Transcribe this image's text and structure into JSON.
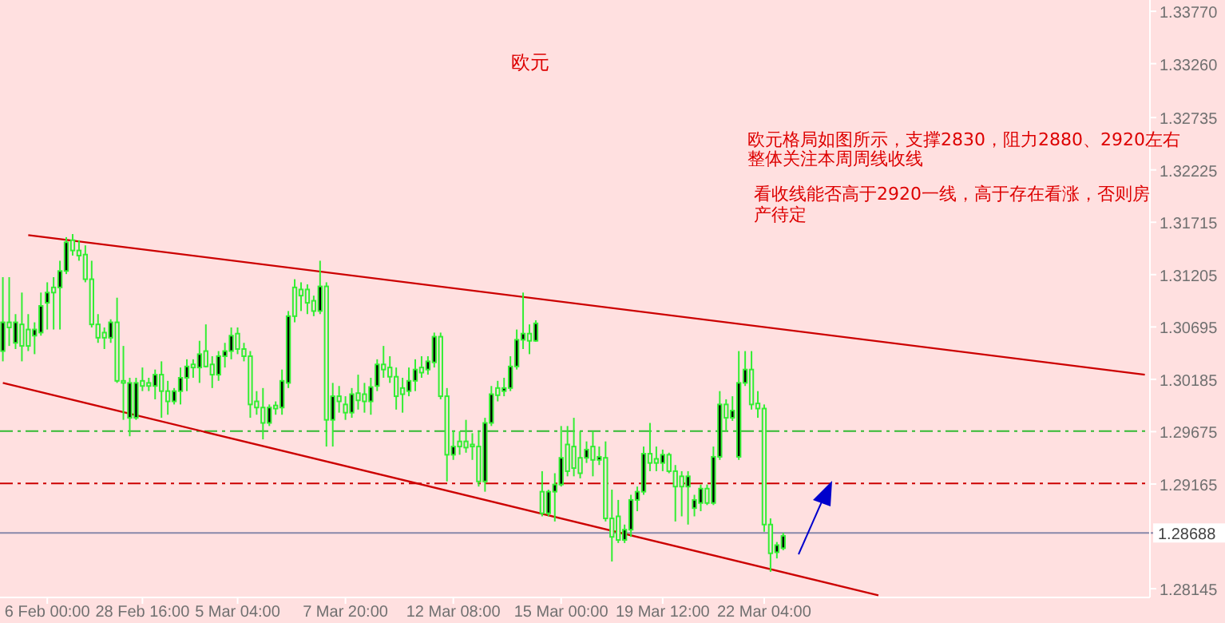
{
  "chart_data": {
    "type": "candlestick",
    "title": "欧元",
    "annotations": [
      "欧元格局如图所示，支撑2830，阻力2880、2920左右",
      "整体关注本周周线收线",
      "看收线能否高于2920一线，高于存在看涨，否则房产待定"
    ],
    "categories": [
      null,
      null,
      null,
      null,
      null,
      null,
      null,
      "6 Feb 00:00",
      null,
      null,
      null,
      null,
      null,
      null,
      null,
      null,
      null,
      null,
      null,
      null,
      null,
      null,
      "28 Feb 16:00",
      null,
      null,
      null,
      null,
      null,
      null,
      null,
      null,
      null,
      null,
      null,
      null,
      null,
      null,
      "5 Mar 04:00",
      null,
      null,
      null,
      null,
      null,
      null,
      null,
      null,
      null,
      null,
      null,
      null,
      null,
      null,
      null,
      null,
      "7 Mar 20:00",
      null,
      null,
      null,
      null,
      null,
      null,
      null,
      null,
      null,
      null,
      null,
      null,
      null,
      null,
      null,
      null,
      "12 Mar 08:00",
      null,
      null,
      null,
      null,
      null,
      null,
      null,
      null,
      null,
      null,
      null,
      null,
      null,
      null,
      null,
      null,
      "15 Mar 00:00",
      null,
      null,
      null,
      null,
      null,
      null,
      null,
      null,
      null,
      null,
      null,
      null,
      null,
      null,
      null,
      "19 Mar 12:00",
      null,
      null,
      null,
      null,
      null,
      null,
      null,
      null,
      null,
      null,
      null,
      null,
      null,
      null,
      null,
      "22 Mar 04:00",
      null,
      null,
      null,
      null,
      null,
      null,
      null,
      null,
      null,
      null,
      null,
      null,
      null,
      null,
      null,
      null,
      null,
      null,
      null,
      null,
      null,
      null,
      null,
      null,
      null,
      null,
      null,
      null,
      null,
      null,
      null,
      null,
      null,
      null,
      null,
      null,
      null,
      null,
      null,
      null,
      null,
      null,
      null,
      null,
      null,
      null,
      null,
      null,
      null,
      null,
      null,
      null,
      null,
      null,
      null,
      null,
      null,
      null,
      null,
      null
    ],
    "color": "#33ee33",
    "colors": [
      "#000000",
      "#ffe0e0",
      "#000000",
      "#ffe0e0",
      "#ffe0e0",
      "#000000",
      "#000000",
      "#000000",
      "#ffe0e0",
      "#000000",
      "#000000",
      "#ffe0e0",
      "#ffe0e0",
      "#ffe0e0",
      "#ffe0e0",
      "#ffe0e0",
      "#ffe0e0",
      "#000000",
      "#ffe0e0",
      "#ffe0e0",
      "#000000",
      "#000000",
      "#ffe0e0",
      "#ffe0e0",
      "#000000",
      "#ffe0e0",
      "#ffe0e0",
      "#000000",
      "#000000",
      "#000000",
      "#ffe0e0",
      "#000000",
      "#ffe0e0",
      "#ffe0e0",
      "#000000",
      "#000000",
      "#000000",
      "#ffe0e0",
      "#ffe0e0",
      "#ffe0e0",
      "#ffe0e0",
      "#ffe0e0",
      "#000000",
      "#ffe0e0",
      "#000000",
      "#000000",
      "#ffe0e0",
      "#ffe0e0",
      "#ffe0e0",
      "#ffe0e0",
      "#000000",
      "#ffe0e0",
      "#000000",
      "#ffe0e0",
      "#ffe0e0",
      "#000000",
      "#ffe0e0",
      "#ffe0e0",
      "#000000",
      "#000000",
      "#ffe0e0",
      "#ffe0e0",
      "#ffe0e0",
      "#ffe0e0",
      "#000000",
      "#000000",
      "#ffe0e0",
      "#000000",
      "#000000",
      "#ffe0e0",
      "#ffe0e0",
      "#000000",
      "#ffe0e0",
      "#ffe0e0",
      "#ffe0e0",
      "#ffe0e0",
      "#000000",
      "#000000",
      "#ffe0e0",
      "#000000",
      "#000000",
      "#000000",
      "#000000",
      "#ffe0e0",
      "#000000",
      "#ffe0e0",
      "#000000",
      "#000000",
      "#000000",
      "#ffe0e0",
      "#ffe0e0",
      "#ffe0e0",
      "#000000",
      "#ffe0e0",
      "#000000",
      "#ffe0e0",
      "#ffe0e0",
      "#ffe0e0",
      "#000000",
      "#000000",
      "#000000",
      "#000000",
      "#ffe0e0",
      "#ffe0e0",
      "#000000",
      "#ffe0e0",
      "#ffe0e0",
      "#ffe0e0",
      "#000000",
      "#000000",
      "#000000",
      "#ffe0e0",
      "#000000",
      "#000000",
      "#ffe0e0",
      "#000000",
      "#000000",
      "#000000",
      "#ffe0e0",
      "#ffe0e0",
      "#ffe0e0",
      "#ffe0e0",
      "#000000",
      "#000000",
      null,
      null,
      null,
      null,
      null,
      null,
      null,
      null,
      null,
      null,
      null,
      null,
      null,
      null,
      null,
      null,
      null,
      null,
      null,
      null,
      null,
      null,
      null,
      null,
      null,
      null,
      null,
      null,
      null,
      null,
      null,
      null,
      null,
      null,
      null,
      null,
      null,
      null,
      null,
      null,
      null,
      null,
      null,
      null,
      null,
      null,
      null,
      null,
      null,
      null,
      null,
      null,
      null,
      null,
      null,
      null,
      null
    ],
    "ohlc": [
      [
        1.3046,
        1.3118,
        1.3036,
        1.3074
      ],
      [
        1.3074,
        1.3118,
        1.3051,
        1.3069
      ],
      [
        1.3054,
        1.3082,
        1.3048,
        1.3074
      ],
      [
        1.3072,
        1.3103,
        1.3036,
        1.3051
      ],
      [
        1.3067,
        1.3082,
        1.3046,
        1.3051
      ],
      [
        1.3061,
        1.3074,
        1.3043,
        1.3067
      ],
      [
        1.3064,
        1.3103,
        1.3061,
        1.309
      ],
      [
        1.3093,
        1.3113,
        1.3067,
        1.3103
      ],
      [
        1.3108,
        1.3118,
        1.3067,
        1.3103
      ],
      [
        1.3108,
        1.3134,
        1.3067,
        1.3124
      ],
      [
        1.3124,
        1.3157,
        1.3121,
        1.3152
      ],
      [
        1.3154,
        1.316,
        1.3139,
        1.3144
      ],
      [
        1.3144,
        1.3154,
        1.3134,
        1.3139
      ],
      [
        1.314,
        1.3149,
        1.3113,
        1.3116
      ],
      [
        1.3116,
        1.3134,
        1.3069,
        1.3072
      ],
      [
        1.3072,
        1.3082,
        1.3054,
        1.3059
      ],
      [
        1.3064,
        1.3069,
        1.3048,
        1.3059
      ],
      [
        1.3059,
        1.3077,
        1.3054,
        1.3074
      ],
      [
        1.3074,
        1.3098,
        1.3015,
        1.3017
      ],
      [
        1.3017,
        1.3051,
        1.2979,
        1.3015
      ],
      [
        1.2981,
        1.302,
        1.2963,
        1.3015
      ],
      [
        1.2981,
        1.302,
        1.2979,
        1.3015
      ],
      [
        1.3017,
        1.303,
        1.3007,
        1.3012
      ],
      [
        1.3015,
        1.302,
        1.3007,
        1.3012
      ],
      [
        1.3012,
        1.3028,
        1.2999,
        1.3023
      ],
      [
        1.3023,
        1.3036,
        1.2981,
        1.3007
      ],
      [
        1.3007,
        1.3017,
        1.2984,
        1.2997
      ],
      [
        1.2997,
        1.301,
        1.2994,
        1.3007
      ],
      [
        1.3007,
        1.303,
        1.2994,
        1.302
      ],
      [
        1.302,
        1.3038,
        1.3007,
        1.3031
      ],
      [
        1.3033,
        1.3038,
        1.302,
        1.303
      ],
      [
        1.303,
        1.3056,
        1.3015,
        1.3043
      ],
      [
        1.3046,
        1.3072,
        1.303,
        1.3031
      ],
      [
        1.3033,
        1.3041,
        1.301,
        1.3023
      ],
      [
        1.3023,
        1.3046,
        1.3017,
        1.3041
      ],
      [
        1.3041,
        1.3054,
        1.303,
        1.3046
      ],
      [
        1.3046,
        1.3069,
        1.3038,
        1.3061
      ],
      [
        1.3063,
        1.3069,
        1.3043,
        1.3048
      ],
      [
        1.3048,
        1.3054,
        1.3036,
        1.3041
      ],
      [
        1.3041,
        1.3046,
        1.2981,
        1.2994
      ],
      [
        1.2997,
        1.3007,
        1.2984,
        1.2991
      ],
      [
        1.2991,
        1.301,
        1.296,
        1.2976
      ],
      [
        1.2976,
        1.2994,
        1.2973,
        1.2991
      ],
      [
        1.2993,
        1.2997,
        1.2984,
        1.299
      ],
      [
        1.2991,
        1.3028,
        1.2984,
        1.3017
      ],
      [
        1.3015,
        1.3085,
        1.301,
        1.308
      ],
      [
        1.3108,
        1.3116,
        1.3074,
        1.308
      ],
      [
        1.3106,
        1.3113,
        1.3085,
        1.31
      ],
      [
        1.3106,
        1.3111,
        1.3082,
        1.3093
      ],
      [
        1.3095,
        1.31,
        1.308,
        1.3085
      ],
      [
        1.3085,
        1.3134,
        1.3082,
        1.3109
      ],
      [
        1.3109,
        1.3113,
        1.2953,
        1.2979
      ],
      [
        1.2979,
        1.3015,
        1.2953,
        1.3002
      ],
      [
        1.3002,
        1.3012,
        1.2986,
        1.2997
      ],
      [
        1.2994,
        1.3002,
        1.2979,
        1.2986
      ],
      [
        1.2986,
        1.301,
        1.2981,
        1.3004
      ],
      [
        1.3005,
        1.3023,
        1.2989,
        1.2998
      ],
      [
        1.3004,
        1.3015,
        1.2986,
        1.2997
      ],
      [
        1.2997,
        1.302,
        1.2984,
        1.3011
      ],
      [
        1.3012,
        1.3038,
        1.3007,
        1.3033
      ],
      [
        1.3033,
        1.3051,
        1.302,
        1.3028
      ],
      [
        1.303,
        1.3041,
        1.3015,
        1.3021
      ],
      [
        1.3021,
        1.303,
        1.2989,
        1.3002
      ],
      [
        1.301,
        1.302,
        1.2986,
        1.3004
      ],
      [
        1.3007,
        1.303,
        1.3002,
        1.3017
      ],
      [
        1.3017,
        1.3038,
        1.3007,
        1.3028
      ],
      [
        1.303,
        1.3041,
        1.302,
        1.3025
      ],
      [
        1.3028,
        1.3041,
        1.3023,
        1.3036
      ],
      [
        1.3035,
        1.3064,
        1.303,
        1.306
      ],
      [
        1.306,
        1.3064,
        1.2999,
        1.3002
      ],
      [
        1.3002,
        1.301,
        1.2919,
        1.2945
      ],
      [
        1.2945,
        1.2968,
        1.294,
        1.2953
      ],
      [
        1.2958,
        1.2968,
        1.2945,
        1.2953
      ],
      [
        1.2958,
        1.2979,
        1.2947,
        1.2952
      ],
      [
        1.2955,
        1.2966,
        1.294,
        1.2953
      ],
      [
        1.2953,
        1.2968,
        1.2914,
        1.2919
      ],
      [
        1.2919,
        1.2981,
        1.2909,
        1.2976
      ],
      [
        1.2976,
        1.3012,
        1.2973,
        1.3004
      ],
      [
        1.301,
        1.3017,
        1.2997,
        1.3003
      ],
      [
        1.3007,
        1.302,
        1.3002,
        1.301
      ],
      [
        1.301,
        1.3041,
        1.3007,
        1.3031
      ],
      [
        1.3031,
        1.3067,
        1.3028,
        1.3057
      ],
      [
        1.3057,
        1.3103,
        1.3048,
        1.3063
      ],
      [
        1.3063,
        1.3072,
        1.3043,
        1.3056
      ],
      [
        1.3056,
        1.3076,
        1.3055,
        1.3073
      ],
      [
        1.2909,
        1.2929,
        1.2885,
        1.2888
      ],
      [
        1.2888,
        1.2911,
        1.2885,
        1.2909
      ],
      [
        1.2909,
        1.2927,
        1.288,
        1.2916
      ],
      [
        1.2916,
        1.2973,
        1.2914,
        1.2942
      ],
      [
        1.2955,
        1.2973,
        1.2924,
        1.2929
      ],
      [
        1.2953,
        1.2981,
        1.2924,
        1.2932
      ],
      [
        1.2942,
        1.2968,
        1.2922,
        1.2927
      ],
      [
        1.2942,
        1.2958,
        1.2937,
        1.295
      ],
      [
        1.2953,
        1.2968,
        1.2924,
        1.294
      ],
      [
        1.294,
        1.2953,
        1.2935,
        1.2943
      ],
      [
        1.2942,
        1.2958,
        1.288,
        1.2883
      ],
      [
        1.2883,
        1.2911,
        1.2841,
        1.2865
      ],
      [
        1.2885,
        1.2901,
        1.2859,
        1.2862
      ],
      [
        1.2862,
        1.2877,
        1.2859,
        1.2872
      ],
      [
        1.2872,
        1.2906,
        1.2865,
        1.2901
      ],
      [
        1.2901,
        1.2914,
        1.289,
        1.2909
      ],
      [
        1.2909,
        1.2953,
        1.2906,
        1.2946
      ],
      [
        1.2946,
        1.2976,
        1.2929,
        1.2937
      ],
      [
        1.2941,
        1.2953,
        1.2929,
        1.2937
      ],
      [
        1.2937,
        1.295,
        1.2929,
        1.2945
      ],
      [
        1.2945,
        1.2947,
        1.2927,
        1.2929
      ],
      [
        1.2929,
        1.2935,
        1.288,
        1.2914
      ],
      [
        1.2924,
        1.2929,
        1.2885,
        1.2914
      ],
      [
        1.2914,
        1.2929,
        1.2877,
        1.2924
      ],
      [
        1.2893,
        1.2906,
        1.2885,
        1.2901
      ],
      [
        1.2898,
        1.2916,
        1.289,
        1.2912
      ],
      [
        1.2912,
        1.2916,
        1.2896,
        1.2898
      ],
      [
        1.2898,
        1.2953,
        1.2896,
        1.2943
      ],
      [
        1.2943,
        1.3007,
        1.294,
        1.2994
      ],
      [
        1.2994,
        1.2999,
        1.2968,
        1.2981
      ],
      [
        1.2981,
        1.3002,
        1.2978,
        1.2988
      ],
      [
        1.2943,
        1.3046,
        1.294,
        1.3015
      ],
      [
        1.3015,
        1.3046,
        1.3012,
        1.3028
      ],
      [
        1.3028,
        1.3046,
        1.2989,
        1.2994
      ],
      [
        1.2995,
        1.3007,
        1.2981,
        1.299
      ],
      [
        1.299,
        1.2994,
        1.287,
        1.2877
      ],
      [
        1.2877,
        1.2883,
        1.2831,
        1.2849
      ],
      [
        1.285,
        1.286,
        1.2844,
        1.2857
      ],
      [
        1.2854,
        1.2869,
        1.2852,
        1.2866
      ],
      null,
      null,
      null,
      null,
      null,
      null,
      null,
      null,
      null,
      null,
      null,
      null,
      null,
      null,
      null,
      null,
      null,
      null,
      null,
      null,
      null,
      null,
      null,
      null,
      null,
      null,
      null,
      null,
      null,
      null,
      null,
      null,
      null,
      null,
      null,
      null,
      null,
      null,
      null,
      null,
      null,
      null,
      null,
      null,
      null,
      null,
      null,
      null,
      null,
      null,
      null,
      null,
      null,
      null,
      null,
      null,
      null
    ],
    "series": [
      {
        "type": "line",
        "color": "#cc0000",
        "values": [
          null,
          null,
          null,
          null,
          1.3159,
          null,
          null,
          null,
          null,
          null,
          null,
          null,
          null,
          null,
          null,
          null,
          null,
          null,
          null,
          null,
          null,
          null,
          null,
          null,
          null,
          null,
          null,
          null,
          null,
          null,
          null,
          null,
          null,
          null,
          null,
          null,
          null,
          null,
          null,
          null,
          null,
          null,
          null,
          null,
          null,
          null,
          null,
          null,
          null,
          null,
          null,
          null,
          null,
          null,
          null,
          null,
          null,
          null,
          null,
          null,
          null,
          null,
          null,
          null,
          null,
          null,
          null,
          null,
          null,
          null,
          null,
          null,
          null,
          null,
          null,
          null,
          null,
          null,
          null,
          null,
          null,
          null,
          null,
          null,
          null,
          null,
          null,
          null,
          null,
          null,
          null,
          null,
          null,
          null,
          null,
          null,
          null,
          null,
          null,
          null,
          null,
          null,
          null,
          null,
          null,
          null,
          null,
          null,
          null,
          null,
          null,
          null,
          null,
          null,
          null,
          null,
          null,
          null,
          null,
          null,
          null,
          null,
          null,
          null,
          null,
          null,
          null,
          null,
          null,
          null,
          null,
          null,
          null,
          null,
          null,
          null,
          null,
          null,
          null,
          null,
          null,
          null,
          null,
          null,
          null,
          null,
          null,
          null,
          null,
          null,
          null,
          null,
          null,
          null,
          null,
          null,
          null,
          null,
          null,
          null,
          null,
          null,
          null,
          null,
          null,
          null,
          null,
          null,
          null,
          null,
          null,
          null,
          null,
          null,
          null,
          null,
          null,
          null,
          null,
          null,
          1.3023
        ]
      },
      {
        "type": "line",
        "color": "#cc0000",
        "values": [
          1.3015,
          null,
          null,
          null,
          null,
          null,
          null,
          null,
          null,
          null,
          null,
          null,
          null,
          null,
          null,
          null,
          null,
          null,
          null,
          null,
          null,
          null,
          null,
          null,
          null,
          null,
          null,
          null,
          null,
          null,
          null,
          null,
          null,
          null,
          null,
          null,
          null,
          null,
          null,
          null,
          null,
          null,
          null,
          null,
          null,
          null,
          null,
          null,
          null,
          null,
          null,
          null,
          null,
          null,
          null,
          null,
          null,
          null,
          null,
          null,
          null,
          null,
          null,
          null,
          null,
          null,
          null,
          null,
          null,
          null,
          null,
          null,
          null,
          null,
          null,
          null,
          null,
          null,
          null,
          null,
          null,
          null,
          null,
          null,
          null,
          null,
          null,
          null,
          null,
          null,
          null,
          null,
          null,
          null,
          null,
          null,
          null,
          null,
          null,
          null,
          null,
          null,
          null,
          null,
          null,
          null,
          null,
          null,
          null,
          null,
          null,
          null,
          null,
          null,
          null,
          null,
          null,
          null,
          null,
          null,
          null,
          null,
          null,
          null,
          null,
          null,
          null,
          null,
          null,
          null,
          null,
          null,
          null,
          null,
          null,
          null,
          null,
          null,
          1.2808,
          null,
          null,
          null,
          null,
          null,
          null,
          null,
          null,
          null,
          null,
          null,
          null,
          null,
          null,
          null,
          null,
          null,
          null,
          null,
          null,
          null,
          null,
          null,
          null,
          null,
          null,
          null,
          null,
          null,
          null,
          null,
          null,
          null,
          null,
          null,
          null,
          null,
          null,
          null,
          null,
          null,
          null
        ]
      }
    ],
    "ref_lines": [
      {
        "axis": "y",
        "value": 1.2968,
        "color": "#33bb33",
        "line_style": "dashed"
      },
      {
        "axis": "y",
        "value": 1.2917,
        "color": "#cc0000",
        "line_style": "dashed"
      },
      {
        "axis": "y",
        "value": 1.28688,
        "label": "1.28688",
        "color": "#8888aa",
        "line_style": "solid"
      }
    ],
    "ylim": [
      1.2806,
      1.3388
    ],
    "yticks": [
      {
        "value": 1.3377,
        "label": "1.33770"
      },
      {
        "value": 1.3326,
        "label": "1.33260"
      },
      {
        "value": 1.32735,
        "label": "1.32735"
      },
      {
        "value": 1.32225,
        "label": "1.32225"
      },
      {
        "value": 1.31715,
        "label": "1.31715"
      },
      {
        "value": 1.31205,
        "label": "1.31205"
      },
      {
        "value": 1.30695,
        "label": "1.30695"
      },
      {
        "value": 1.30185,
        "label": "1.30185"
      },
      {
        "value": 1.29675,
        "label": "1.29675"
      },
      {
        "value": 1.29165,
        "label": "1.29165"
      },
      {
        "value": 1.28145,
        "label": "1.28145"
      }
    ]
  }
}
